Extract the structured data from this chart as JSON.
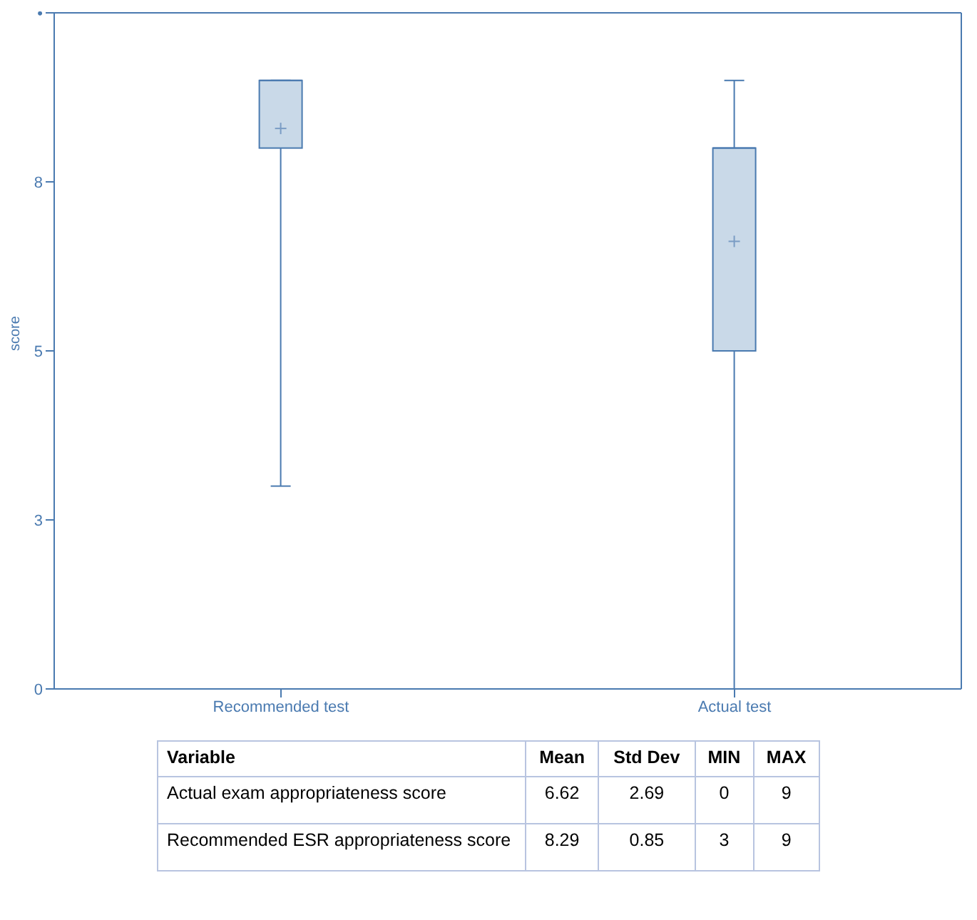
{
  "chart_data": {
    "type": "box",
    "ylabel": "score",
    "categories": [
      "Recommended test",
      "Actual test"
    ],
    "boxes": [
      {
        "low": 3,
        "q1": 8,
        "median": 9,
        "q3": 9,
        "high": 9,
        "mean": 8.29
      },
      {
        "low": 0,
        "q1": 5,
        "median": 8,
        "q3": 8,
        "high": 9,
        "mean": 6.62
      }
    ],
    "color": "#c9d9e8",
    "ylim": [
      0,
      10
    ],
    "yticks": [
      0,
      {
        "value": 2.5,
        "label": "3"
      },
      5,
      {
        "value": 7.5,
        "label": "8"
      },
      {
        "value": 10,
        "label": "•"
      }
    ],
    "annotations": [
      "Variable",
      "Mean",
      "Std Dev",
      "MIN",
      "MAX",
      "Actual exam appropriateness score",
      "6.62",
      "2.69",
      "0",
      "9",
      "Recommended ESR appropriateness score",
      "8.29",
      "0.85",
      "3",
      "9"
    ]
  }
}
